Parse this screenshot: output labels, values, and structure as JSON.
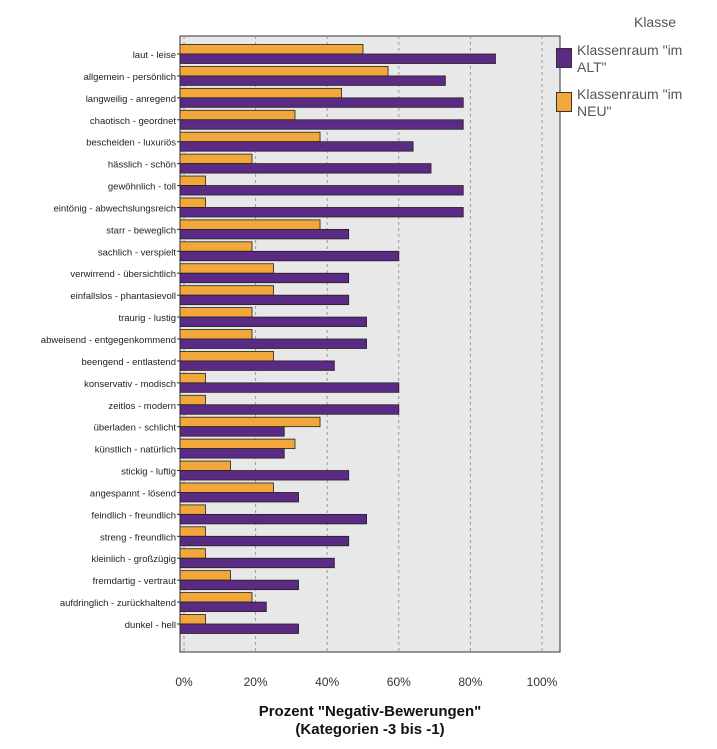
{
  "chart_data": {
    "type": "bar",
    "orientation": "horizontal",
    "categories": [
      "laut - leise",
      "allgemein - persönlich",
      "langweilig - anregend",
      "chaotisch - geordnet",
      "bescheiden - luxuriös",
      "hässlich - schön",
      "gewöhnlich - toll",
      "eintönig - abwechslungsreich",
      "starr - beweglich",
      "sachlich - verspielt",
      "verwirrend - übersichtlich",
      "einfallslos - phantasievoll",
      "traurig - lustig",
      "abweisend - entgegenkommend",
      "beengend - entlastend",
      "konservativ - modisch",
      "zeitlos - modern",
      "überladen - schlicht",
      "künstlich - natürlich",
      "stickig - luftig",
      "angespannt - lösend",
      "feindlich - freundlich",
      "streng - freundlich",
      "kleinlich - großzügig",
      "fremdartig - vertraut",
      "aufdringlich - zurückhaltend",
      "dunkel - hell"
    ],
    "series": [
      {
        "name": "Klassenraum \"im ALT\"",
        "color": "#5b2a84",
        "values": [
          87,
          73,
          78,
          78,
          64,
          69,
          78,
          78,
          46,
          60,
          46,
          46,
          51,
          51,
          42,
          60,
          60,
          28,
          28,
          46,
          32,
          51,
          46,
          42,
          32,
          23,
          32
        ]
      },
      {
        "name": "Klassenraum \"im NEU\"",
        "color": "#f2a73a",
        "values": [
          50,
          57,
          44,
          31,
          38,
          19,
          6,
          6,
          38,
          19,
          25,
          25,
          19,
          19,
          25,
          6,
          6,
          38,
          31,
          13,
          25,
          6,
          6,
          6,
          13,
          19,
          6
        ]
      }
    ],
    "xlabel": "Prozent \"Negativ-Bewerungen\"",
    "xlabel_line2": "(Kategorien -3 bis -1)",
    "xlim": [
      0,
      100
    ],
    "xticks": [
      "0%",
      "20%",
      "40%",
      "60%",
      "80%",
      "100%"
    ],
    "grid": true,
    "legend_title": "Klasse",
    "legend_position": "right"
  }
}
